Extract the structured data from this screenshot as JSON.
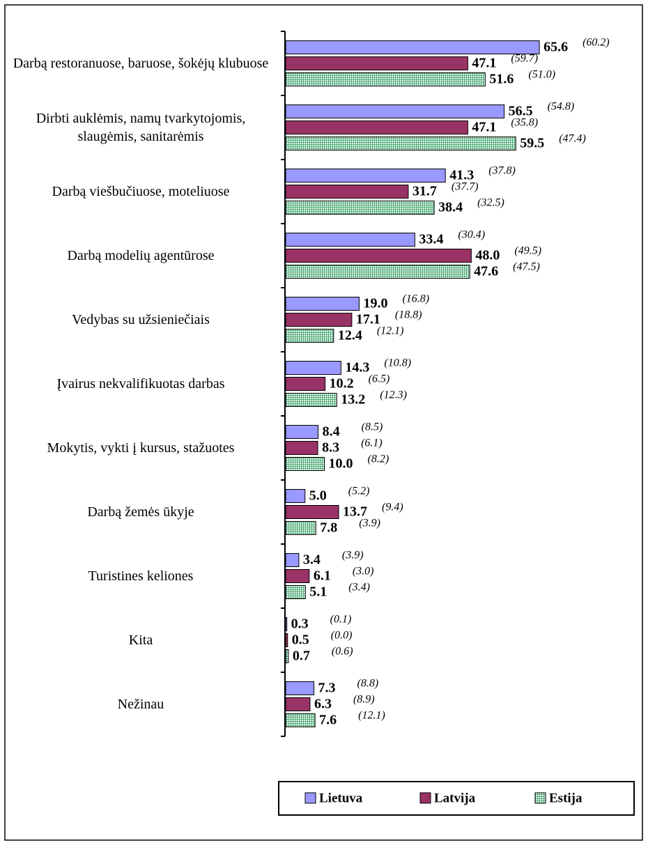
{
  "chart_data": {
    "type": "hbar",
    "categories": [
      "Darbą restoranuose, baruose, šokėjų klubuose",
      "Dirbti auklėmis, namų tvarkytojomis, slaugėmis, sanitarėmis",
      "Darbą viešbučiuose, moteliuose",
      "Darbą modelių agentūrose",
      "Vedybas su užsieniečiais",
      "Įvairus nekvalifikuotas darbas",
      "Mokytis, vykti į kursus, stažuotes",
      "Darbą žemės ūkyje",
      "Turistines keliones",
      "Kita",
      "Nežinau"
    ],
    "xlim": [
      0,
      80
    ],
    "legend": "bottom-right",
    "series": [
      {
        "name": "Lietuva",
        "color": "#9999ff",
        "pattern": false,
        "values": [
          65.6,
          56.5,
          41.3,
          33.4,
          19.0,
          14.3,
          8.4,
          5.0,
          3.4,
          0.3,
          7.3
        ],
        "value_labels": [
          "65.6",
          "56.5",
          "41.3",
          "33.4",
          "19.0",
          "14.3",
          "8.4",
          "5.0",
          "3.4",
          "0.3",
          "7.3"
        ],
        "notes": [
          "(60.2)",
          "(54.8)",
          "(37.8)",
          "(30.4)",
          "(16.8)",
          "(10.8)",
          "(8.5)",
          "(5.2)",
          "(3.9)",
          "(0.1)",
          "(8.8)"
        ]
      },
      {
        "name": "Latvija",
        "color": "#993366",
        "pattern": false,
        "values": [
          47.1,
          47.1,
          31.7,
          48.0,
          17.1,
          10.2,
          8.3,
          13.7,
          6.1,
          0.5,
          6.3
        ],
        "value_labels": [
          "47.1",
          "47.1",
          "31.7",
          "48.0",
          "17.1",
          "10.2",
          "8.3",
          "13.7",
          "6.1",
          "0.5",
          "6.3"
        ],
        "notes": [
          "(59.7)",
          "(35.8)",
          "(37.7)",
          "(49.5)",
          "(18.8)",
          "(6.5)",
          "(6.1)",
          "(9.4)",
          "(3.0)",
          "(0.0)",
          "(8.9)"
        ]
      },
      {
        "name": "Estija",
        "color": "#339966",
        "pattern": true,
        "values": [
          51.6,
          59.5,
          38.4,
          47.6,
          12.4,
          13.2,
          10.0,
          7.8,
          5.1,
          0.7,
          7.6
        ],
        "value_labels": [
          "51.6",
          "59.5",
          "38.4",
          "47.6",
          "12.4",
          "13.2",
          "10.0",
          "7.8",
          "5.1",
          "0.7",
          "7.6"
        ],
        "notes": [
          "(51.0)",
          "(47.4)",
          "(32.5)",
          "(47.5)",
          "(12.1)",
          "(12.3)",
          "(8.2)",
          "(3.9)",
          "(3.4)",
          "(0.6)",
          "(12.1)"
        ]
      }
    ]
  }
}
